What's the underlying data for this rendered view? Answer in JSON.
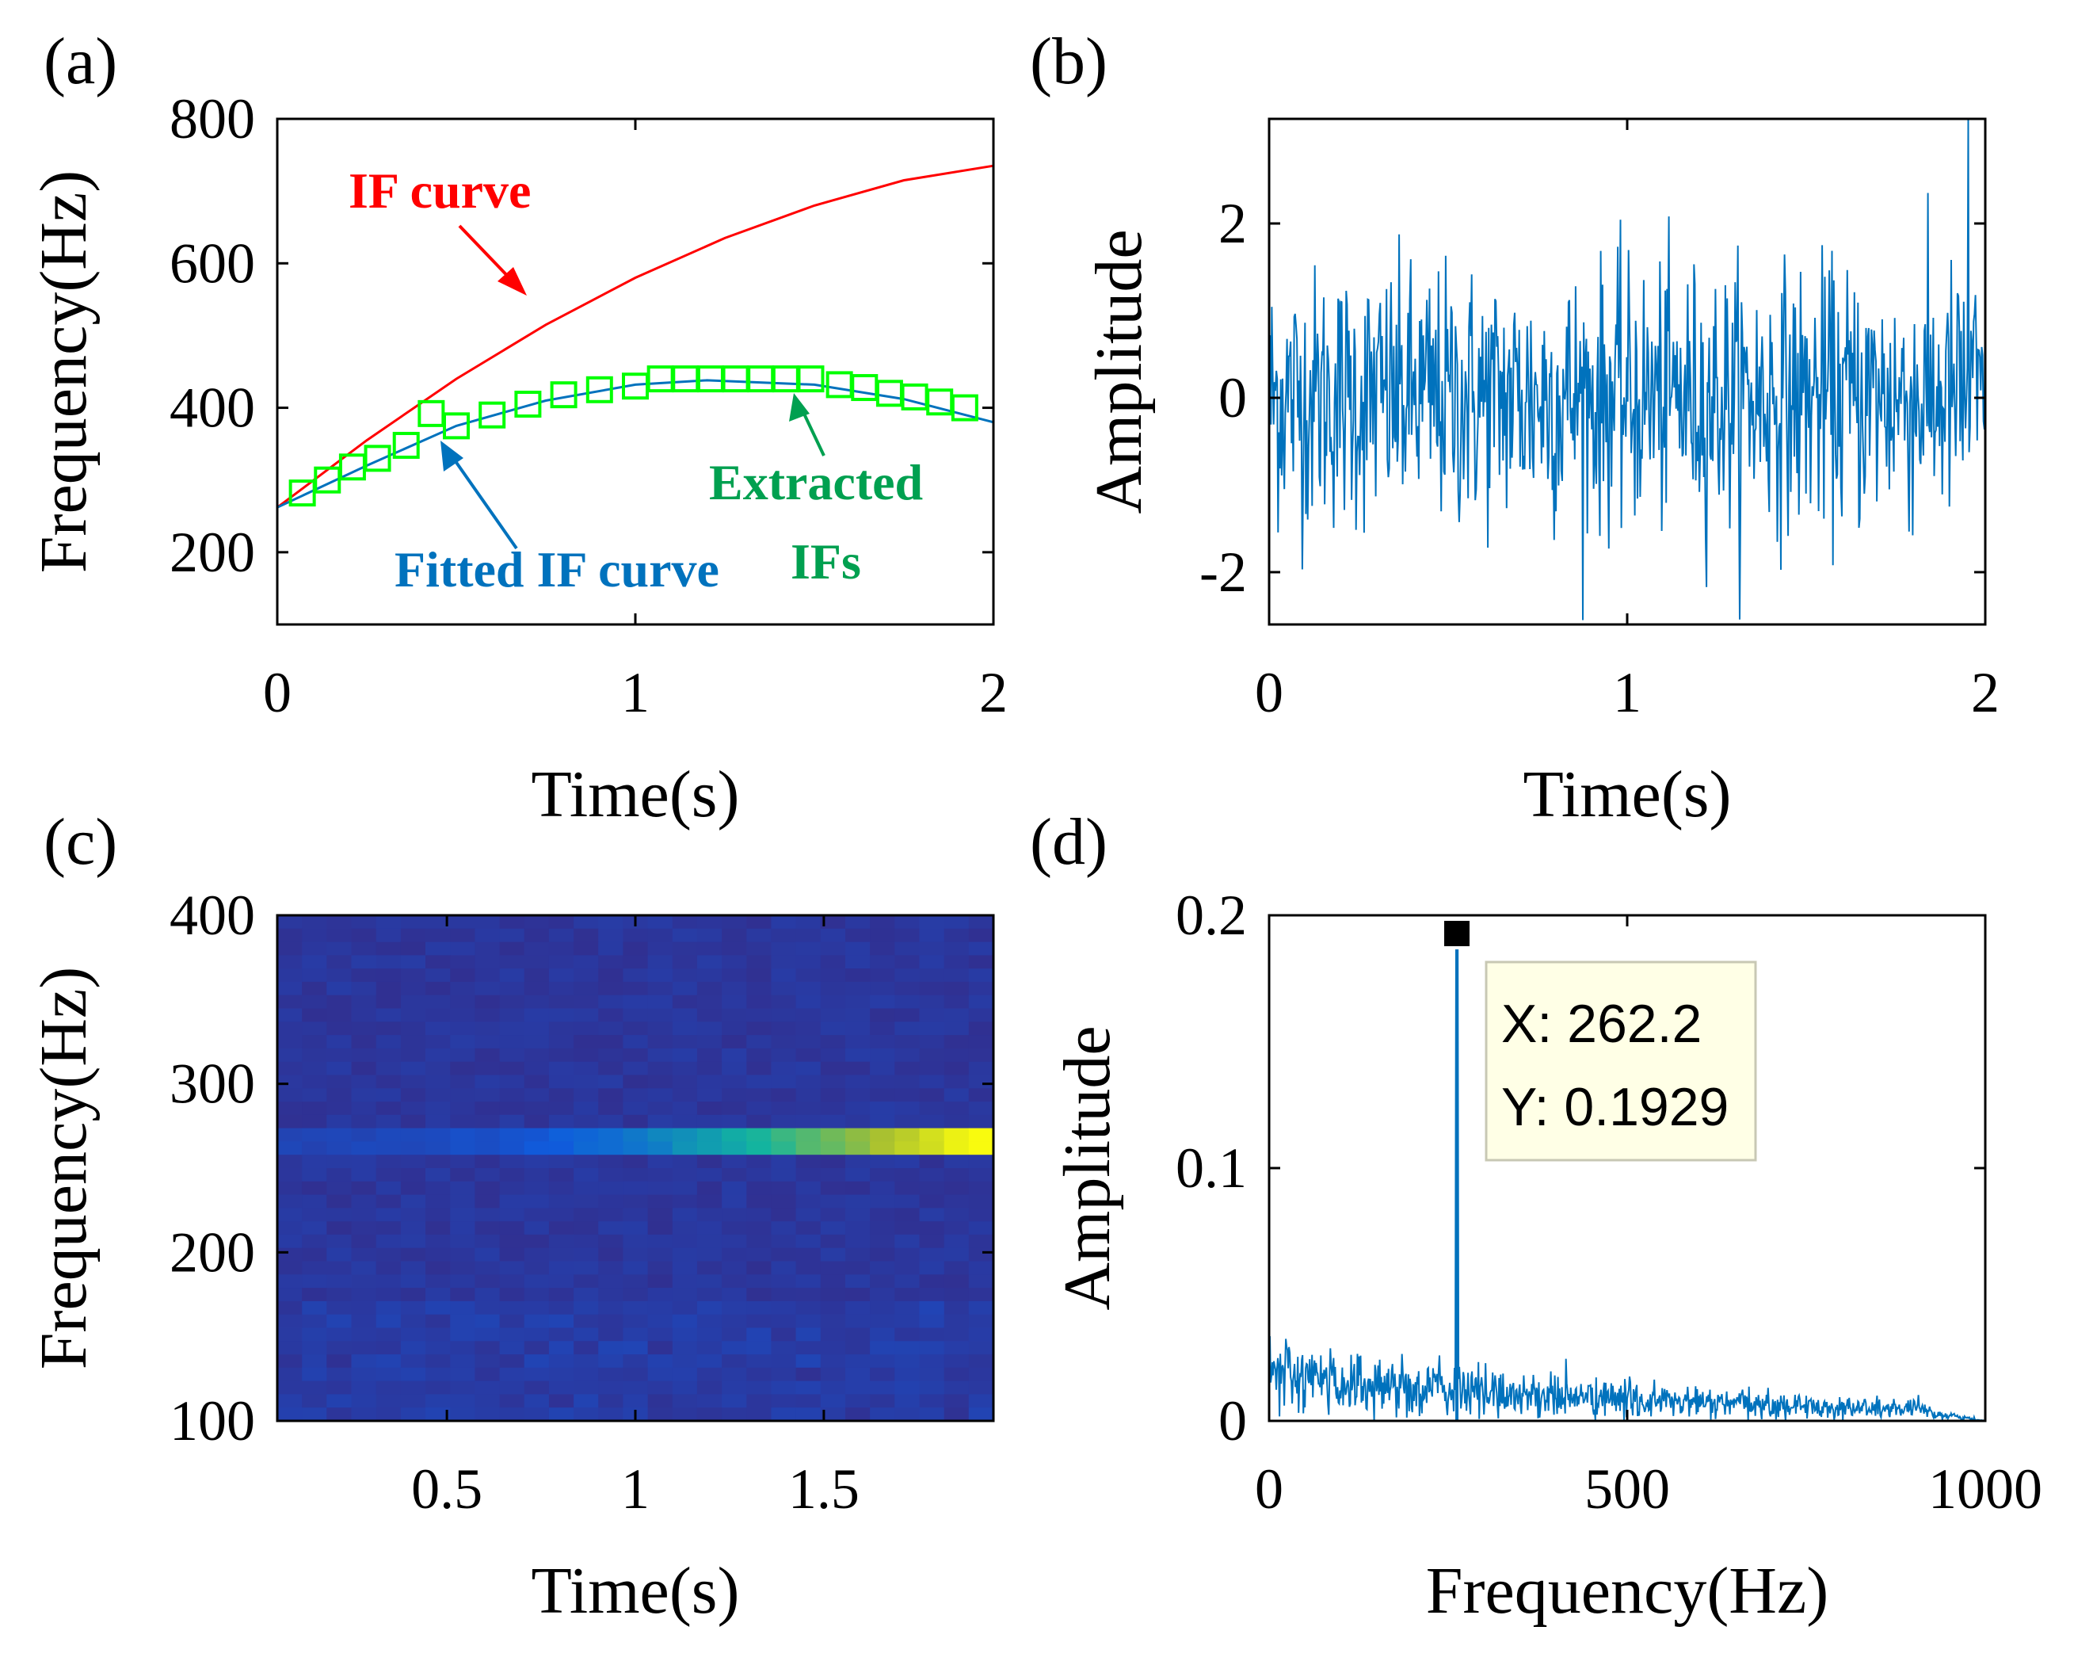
{
  "colors": {
    "if_curve": "#ff0000",
    "fitted": "#0072bd",
    "extracted": "#00ff00",
    "extracted_label": "#00a050",
    "signal": "#0072bd",
    "tooltip_bg": "#ffffe6"
  },
  "chart_data": [
    {
      "panel": "(a)",
      "type": "line",
      "xlabel": "Time(s)",
      "ylabel": "Frequency(Hz)",
      "xlim": [
        0,
        2
      ],
      "ylim": [
        100,
        800
      ],
      "xticks": [
        "0",
        "1",
        "2"
      ],
      "yticks": [
        "200",
        "400",
        "600",
        "800"
      ],
      "xtick_values": [
        0,
        1,
        2
      ],
      "ytick_values": [
        200,
        400,
        600,
        800
      ],
      "series": [
        {
          "name": "IF curve",
          "color": "#ff0000",
          "x": [
            0,
            0.25,
            0.5,
            0.75,
            1.0,
            1.25,
            1.5,
            1.75,
            2.0
          ],
          "y": [
            262,
            355,
            440,
            515,
            580,
            635,
            680,
            715,
            735
          ]
        },
        {
          "name": "Fitted IF curve",
          "color": "#0072bd",
          "x": [
            0,
            0.25,
            0.5,
            0.75,
            1.0,
            1.2,
            1.5,
            1.75,
            2.0
          ],
          "y": [
            262,
            320,
            375,
            410,
            432,
            438,
            432,
            412,
            380
          ]
        },
        {
          "name": "Extracted IFs",
          "color": "#00ff00",
          "marker": "square",
          "x": [
            0.07,
            0.14,
            0.21,
            0.28,
            0.36,
            0.43,
            0.5,
            0.6,
            0.7,
            0.8,
            0.9,
            1.0,
            1.07,
            1.14,
            1.21,
            1.28,
            1.35,
            1.42,
            1.49,
            1.57,
            1.64,
            1.71,
            1.78,
            1.85,
            1.92
          ],
          "y": [
            282,
            300,
            318,
            330,
            348,
            392,
            375,
            390,
            405,
            418,
            425,
            430,
            440,
            440,
            440,
            440,
            440,
            440,
            440,
            432,
            428,
            420,
            415,
            408,
            400
          ]
        }
      ],
      "annotations": [
        {
          "text": "IF curve",
          "color": "#ff0000"
        },
        {
          "text": "Fitted IF curve",
          "color": "#0072bd"
        },
        {
          "text": "Extracted",
          "color": "#00a050"
        },
        {
          "text": "IFs",
          "color": "#00a050"
        }
      ]
    },
    {
      "panel": "(b)",
      "type": "line",
      "xlabel": "Time(s)",
      "ylabel": "Amplitude",
      "xlim": [
        0,
        2
      ],
      "ylim": [
        -2.6,
        3.2
      ],
      "xticks": [
        "0",
        "1",
        "2"
      ],
      "yticks": [
        "-2",
        "0",
        "2"
      ],
      "xtick_values": [
        0,
        1,
        2
      ],
      "ytick_values": [
        -2,
        0,
        2
      ],
      "series": [
        {
          "name": "signal",
          "description": "noisy time-domain signal, amplitude mostly within -2.5 to 2.3, peak ~3.2 near t=1.95",
          "sample_count": 800,
          "std": 0.75
        }
      ]
    },
    {
      "panel": "(c)",
      "type": "heatmap",
      "xlabel": "Time(s)",
      "ylabel": "Frequency(Hz)",
      "xlim": [
        0.05,
        1.95
      ],
      "ylim": [
        100,
        400
      ],
      "xticks": [
        "0.5",
        "1",
        "1.5"
      ],
      "yticks": [
        "100",
        "200",
        "300",
        "400"
      ],
      "xtick_values": [
        0.5,
        1,
        1.5
      ],
      "ytick_values": [
        100,
        200,
        300,
        400
      ],
      "grid": {
        "cols": 29,
        "rows": 38
      },
      "ridge": {
        "frequency": 262,
        "intensity_start": 0.2,
        "intensity_end": 1.0
      }
    },
    {
      "panel": "(d)",
      "type": "line",
      "xlabel": "Frequency(Hz)",
      "ylabel": "Amplitude",
      "xlim": [
        0,
        1000
      ],
      "ylim": [
        0,
        0.2
      ],
      "xticks": [
        "0",
        "500",
        "1000"
      ],
      "yticks": [
        "0",
        "0.1",
        "0.2"
      ],
      "xtick_values": [
        0,
        500,
        1000
      ],
      "ytick_values": [
        0,
        0.1,
        0.2
      ],
      "peak": {
        "x": 262.2,
        "y": 0.1929
      },
      "datatip": {
        "x_label": "X: 262.2",
        "y_label": "Y: 0.1929"
      }
    }
  ]
}
